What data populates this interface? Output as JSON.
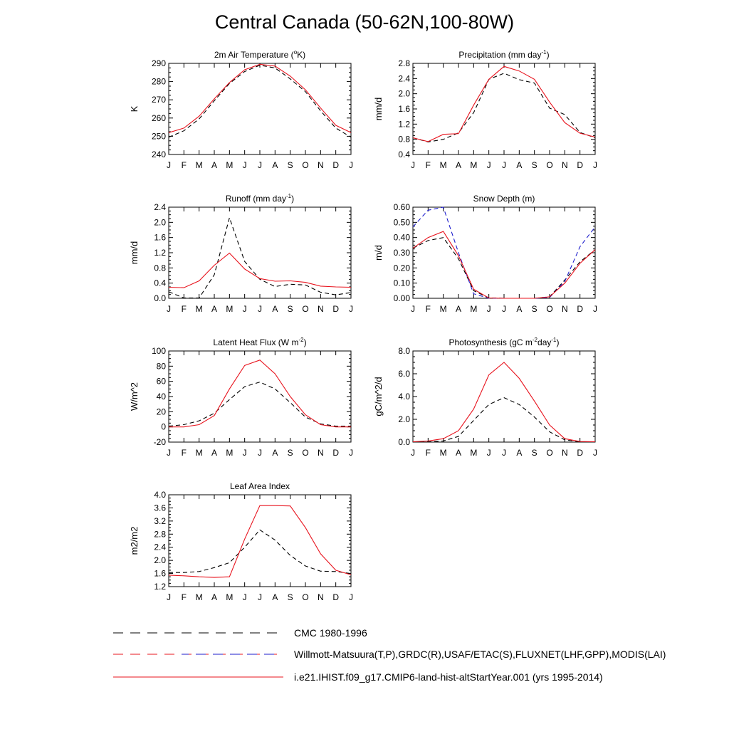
{
  "title": "Central Canada (50-62N,100-80W)",
  "colors": {
    "black": "#000000",
    "red": "#e8141e",
    "blue": "#1c1ccc"
  },
  "chart_data": [
    {
      "type": "line",
      "title": "2m Air Temperature (°K)",
      "ylabel": "K",
      "ylim": [
        240,
        290
      ],
      "yticks": [
        "240",
        "250",
        "260",
        "270",
        "280",
        "290"
      ],
      "x": [
        "J",
        "F",
        "M",
        "A",
        "M",
        "J",
        "J",
        "A",
        "S",
        "O",
        "N",
        "D",
        "J"
      ],
      "series": [
        {
          "name": "CMC 1980-1996",
          "color": "black",
          "dash": true,
          "values": [
            249.5,
            253,
            259.5,
            269.5,
            279,
            285.5,
            289,
            287.5,
            281.5,
            274.5,
            264,
            254.5,
            249.5
          ]
        },
        {
          "name": "i.e21.IHIST.f09_g17.CMIP6-land-hist-altStartYear.001 (yrs 1995-2014)",
          "color": "red",
          "dash": false,
          "values": [
            252,
            254.5,
            261,
            270.5,
            279.5,
            286.5,
            289.5,
            288.5,
            283,
            275.5,
            265.5,
            256,
            252
          ]
        }
      ]
    },
    {
      "type": "line",
      "title": "Precipitation (mm day-1)",
      "ylabel": "mm/d",
      "ylim": [
        0.4,
        2.8
      ],
      "yticks": [
        "0.4",
        "0.8",
        "1.2",
        "1.6",
        "2.0",
        "2.4",
        "2.8"
      ],
      "x": [
        "J",
        "F",
        "M",
        "A",
        "M",
        "J",
        "J",
        "A",
        "S",
        "O",
        "N",
        "D",
        "J"
      ],
      "series": [
        {
          "name": "Willmott-Matsuura(T,P)",
          "color": "black",
          "dash": true,
          "values": [
            0.84,
            0.73,
            0.8,
            0.97,
            1.5,
            2.38,
            2.54,
            2.37,
            2.28,
            1.62,
            1.45,
            0.98,
            0.84
          ]
        },
        {
          "name": "i.e21.IHIST.f09_g17.CMIP6-land-hist-altStartYear.001 (yrs 1995-2014)",
          "color": "red",
          "dash": false,
          "values": [
            0.84,
            0.74,
            0.93,
            0.95,
            1.7,
            2.38,
            2.72,
            2.6,
            2.38,
            1.78,
            1.24,
            0.96,
            0.86
          ]
        }
      ]
    },
    {
      "type": "line",
      "title": "Runoff (mm day-1)",
      "ylabel": "mm/d",
      "ylim": [
        0,
        2.4
      ],
      "yticks": [
        "0.0",
        "0.4",
        "0.8",
        "1.2",
        "1.6",
        "2.0",
        "2.4"
      ],
      "x": [
        "J",
        "F",
        "M",
        "A",
        "M",
        "J",
        "J",
        "A",
        "S",
        "O",
        "N",
        "D",
        "J"
      ],
      "series": [
        {
          "name": "GRDC(R)",
          "color": "black",
          "dash": true,
          "values": [
            0.17,
            0.01,
            0.01,
            0.62,
            2.12,
            0.97,
            0.5,
            0.31,
            0.37,
            0.35,
            0.16,
            0.09,
            0.15
          ]
        },
        {
          "name": "i.e21.IHIST.f09_g17.CMIP6-land-hist-altStartYear.001 (yrs 1995-2014)",
          "color": "red",
          "dash": false,
          "values": [
            0.29,
            0.28,
            0.46,
            0.87,
            1.19,
            0.77,
            0.52,
            0.45,
            0.46,
            0.42,
            0.32,
            0.3,
            0.29
          ]
        }
      ]
    },
    {
      "type": "line",
      "title": "Snow Depth (m)",
      "ylabel": "m/d",
      "ylim": [
        0,
        0.6
      ],
      "yticks": [
        "0.00",
        "0.10",
        "0.20",
        "0.30",
        "0.40",
        "0.50",
        "0.60"
      ],
      "x": [
        "J",
        "F",
        "M",
        "A",
        "M",
        "J",
        "J",
        "A",
        "S",
        "O",
        "N",
        "D",
        "J"
      ],
      "series": [
        {
          "name": "CMC 1980-1996",
          "color": "black",
          "dash": true,
          "values": [
            0.33,
            0.38,
            0.4,
            0.26,
            0.05,
            0.003,
            0.0,
            0.0,
            0.0,
            0.01,
            0.12,
            0.24,
            0.32
          ]
        },
        {
          "name": "USAF/ETAC(S)",
          "color": "blue",
          "dash": true,
          "values": [
            0.47,
            0.58,
            0.6,
            0.3,
            0.03,
            0.0,
            0.0,
            0.0,
            0.0,
            0.005,
            0.11,
            0.34,
            0.47
          ]
        },
        {
          "name": "i.e21.IHIST.f09_g17.CMIP6-land-hist-altStartYear.001 (yrs 1995-2014)",
          "color": "red",
          "dash": false,
          "values": [
            0.33,
            0.4,
            0.44,
            0.28,
            0.06,
            0.002,
            0.0,
            0.0,
            0.0,
            0.01,
            0.1,
            0.23,
            0.32
          ]
        }
      ]
    },
    {
      "type": "line",
      "title": "Latent Heat Flux (W m-2)",
      "ylabel": "W/m^2",
      "ylim": [
        -20,
        100
      ],
      "yticks": [
        "-20",
        "0",
        "20",
        "40",
        "60",
        "80",
        "100"
      ],
      "x": [
        "J",
        "F",
        "M",
        "A",
        "M",
        "J",
        "J",
        "A",
        "S",
        "O",
        "N",
        "D",
        "J"
      ],
      "series": [
        {
          "name": "FLUXNET(LHF)",
          "color": "black",
          "dash": true,
          "values": [
            1,
            3,
            8,
            18,
            36,
            53,
            59,
            50,
            32,
            13,
            4,
            1,
            1
          ]
        },
        {
          "name": "i.e21.IHIST.f09_g17.CMIP6-land-hist-altStartYear.001 (yrs 1995-2014)",
          "color": "red",
          "dash": false,
          "values": [
            0,
            0,
            3,
            15,
            50,
            81,
            88,
            70,
            40,
            16,
            3,
            0,
            0
          ]
        }
      ]
    },
    {
      "type": "line",
      "title": "Photosynthesis (gC m-2day-1)",
      "ylabel": "gC/m^2/d",
      "ylim": [
        0,
        8
      ],
      "yticks": [
        "0.0",
        "2.0",
        "4.0",
        "6.0",
        "8.0"
      ],
      "x": [
        "J",
        "F",
        "M",
        "A",
        "M",
        "J",
        "J",
        "A",
        "S",
        "O",
        "N",
        "D",
        "J"
      ],
      "series": [
        {
          "name": "FLUXNET(GPP)",
          "color": "black",
          "dash": true,
          "values": [
            0.02,
            0.02,
            0.1,
            0.5,
            1.9,
            3.3,
            3.9,
            3.3,
            2.2,
            0.9,
            0.2,
            0.03,
            0.02
          ]
        },
        {
          "name": "i.e21.IHIST.f09_g17.CMIP6-land-hist-altStartYear.001 (yrs 1995-2014)",
          "color": "red",
          "dash": false,
          "values": [
            0.03,
            0.1,
            0.3,
            1.0,
            2.9,
            5.9,
            7.0,
            5.6,
            3.6,
            1.5,
            0.3,
            0.05,
            0.03
          ]
        }
      ]
    },
    {
      "type": "line",
      "title": "Leaf Area Index",
      "ylabel": "m2/m2",
      "ylim": [
        1.2,
        4.0
      ],
      "yticks": [
        "1.2",
        "1.6",
        "2.0",
        "2.4",
        "2.8",
        "3.2",
        "3.6",
        "4.0"
      ],
      "x": [
        "J",
        "F",
        "M",
        "A",
        "M",
        "J",
        "J",
        "A",
        "S",
        "O",
        "N",
        "D",
        "J"
      ],
      "series": [
        {
          "name": "MODIS(LAI)",
          "color": "black",
          "dash": true,
          "values": [
            1.63,
            1.63,
            1.66,
            1.78,
            1.93,
            2.4,
            2.93,
            2.62,
            2.15,
            1.83,
            1.67,
            1.66,
            1.6
          ]
        },
        {
          "name": "i.e21.IHIST.f09_g17.CMIP6-land-hist-altStartYear.001 (yrs 1995-2014)",
          "color": "red",
          "dash": false,
          "values": [
            1.55,
            1.53,
            1.5,
            1.48,
            1.5,
            2.65,
            3.67,
            3.67,
            3.66,
            3.0,
            2.2,
            1.7,
            1.56
          ]
        }
      ]
    }
  ],
  "legend": [
    {
      "label": "CMC 1980-1996",
      "style": "dash-black"
    },
    {
      "label": "Willmott-Matsuura(T,P),GRDC(R),USAF/ETAC(S),FLUXNET(LHF,GPP),MODIS(LAI)",
      "style": "dash-red-blue"
    },
    {
      "label": "i.e21.IHIST.f09_g17.CMIP6-land-hist-altStartYear.001 (yrs 1995-2014)",
      "style": "solid-red"
    }
  ]
}
